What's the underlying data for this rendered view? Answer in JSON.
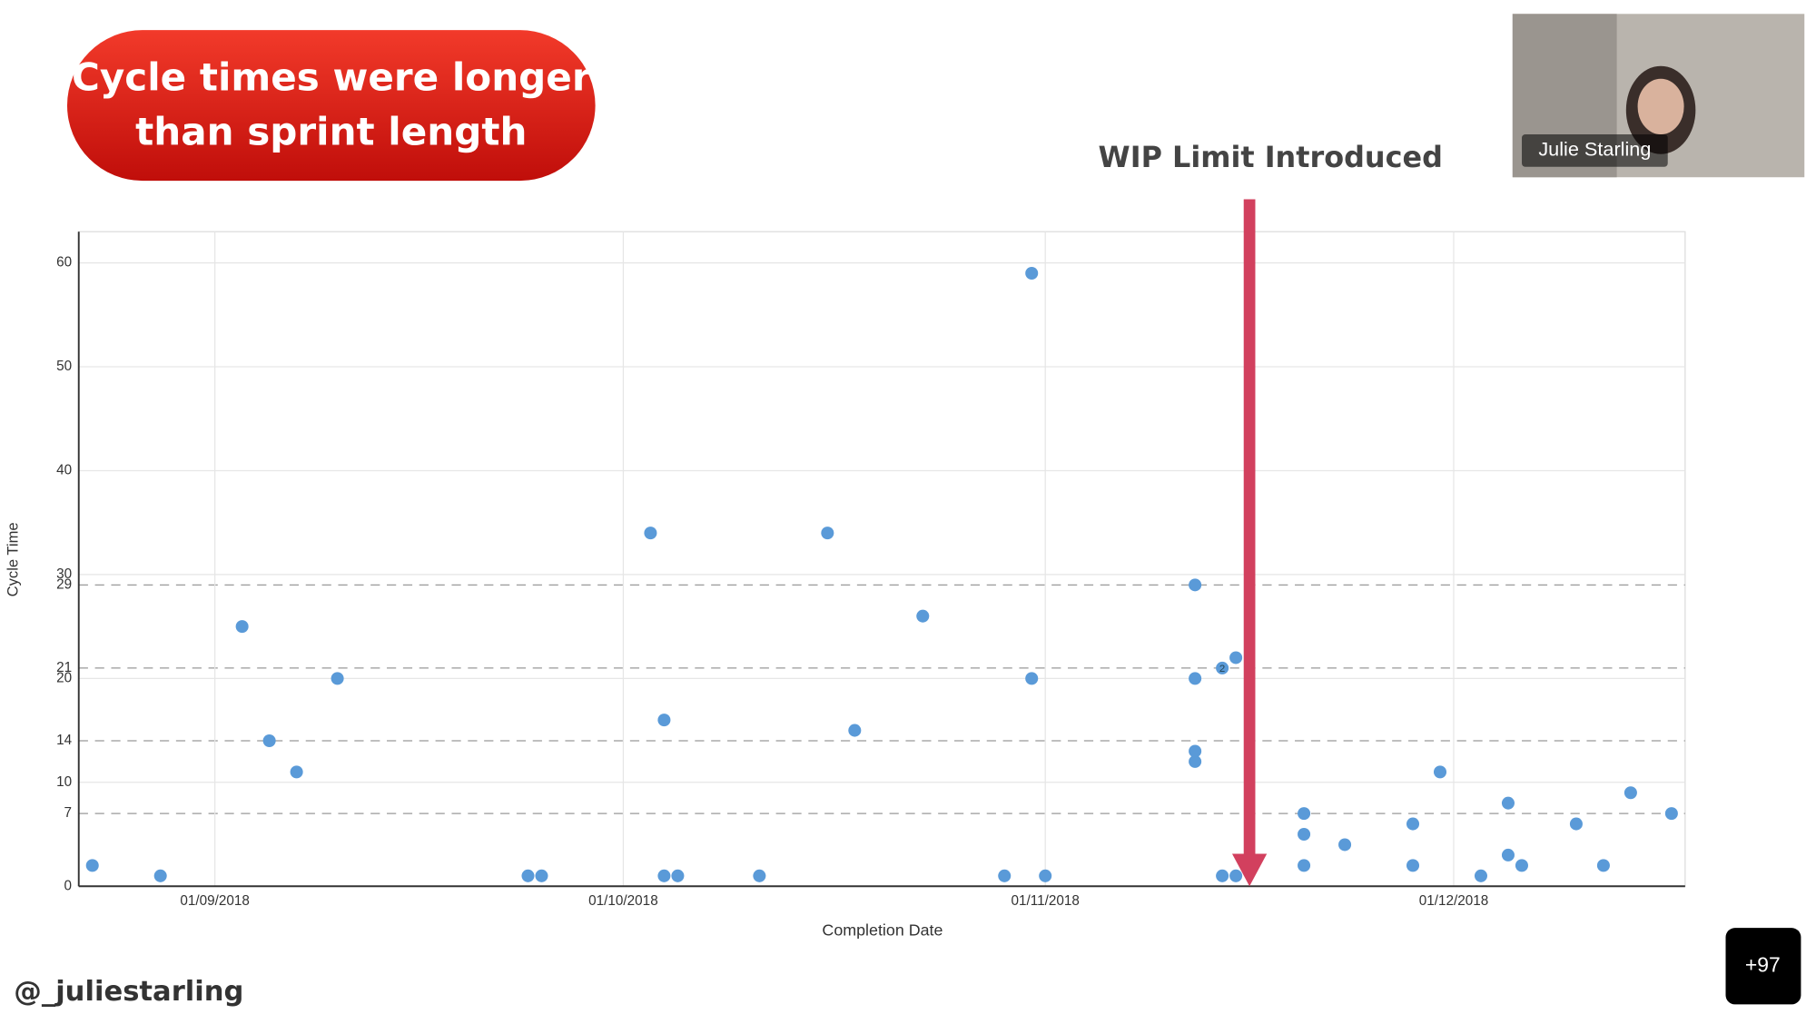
{
  "callout": [
    "Cycle times were longer",
    "than sprint length"
  ],
  "participant": {
    "name": "Julie Starling"
  },
  "handle": "@_juliestarling",
  "participant_count": "+97",
  "chart_data": {
    "type": "scatter",
    "x_label": "Completion Date",
    "y_label": "Cycle Time",
    "color": "#5a9ad8",
    "x": [
      "2018-08-23",
      "2018-08-28",
      "2018-09-03",
      "2018-09-05",
      "2018-09-07",
      "2018-09-10",
      "2018-09-24",
      "2018-09-25",
      "2018-10-03",
      "2018-10-04",
      "2018-10-04",
      "2018-10-05",
      "2018-10-11",
      "2018-10-16",
      "2018-10-18",
      "2018-10-23",
      "2018-10-29",
      "2018-10-31",
      "2018-10-31",
      "2018-11-01",
      "2018-11-12",
      "2018-11-12",
      "2018-11-12",
      "2018-11-12",
      "2018-11-14",
      "2018-11-14",
      "2018-11-15",
      "2018-11-15",
      "2018-11-20",
      "2018-11-20",
      "2018-11-20",
      "2018-11-23",
      "2018-11-28",
      "2018-11-28",
      "2018-11-30",
      "2018-12-03",
      "2018-12-05",
      "2018-12-05",
      "2018-12-06",
      "2018-12-10",
      "2018-12-12",
      "2018-12-14",
      "2018-12-17"
    ],
    "values": [
      2,
      1,
      25,
      14,
      11,
      20,
      1,
      1,
      34,
      16,
      1,
      1,
      1,
      34,
      15,
      26,
      1,
      59,
      20,
      1,
      29,
      20,
      13,
      12,
      21,
      1,
      22,
      1,
      7,
      5,
      2,
      4,
      6,
      2,
      11,
      1,
      8,
      3,
      2,
      6,
      2,
      9,
      7
    ],
    "annotations": [
      {
        "x": "2018-11-14",
        "y": 21,
        "text": "2"
      }
    ],
    "xlim": [
      "2018-08-22",
      "2018-12-18"
    ],
    "xticks": [
      {
        "value": "2018-09-01",
        "label": "01/09/2018"
      },
      {
        "value": "2018-10-01",
        "label": "01/10/2018"
      },
      {
        "value": "2018-11-01",
        "label": "01/11/2018"
      },
      {
        "value": "2018-12-01",
        "label": "01/12/2018"
      }
    ],
    "ylim": [
      0,
      63
    ],
    "yticks": [
      0,
      7,
      10,
      14,
      20,
      21,
      29,
      30,
      40,
      50,
      60
    ],
    "dashed_lines": [
      7,
      14,
      21,
      29
    ],
    "grid": true,
    "marker": {
      "x": "2018-11-16",
      "label": "WIP Limit Introduced",
      "color": "#d2405e"
    }
  }
}
